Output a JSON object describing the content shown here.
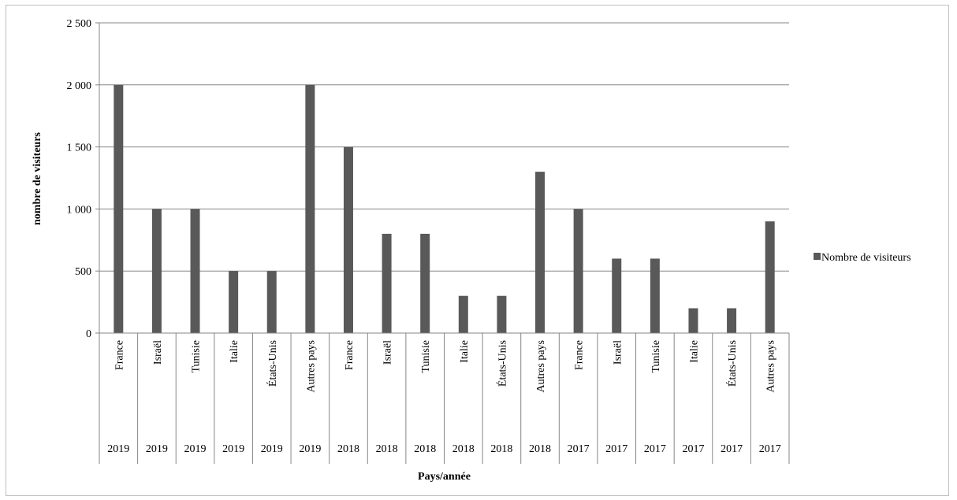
{
  "chart_data": {
    "type": "bar",
    "title": "",
    "xlabel": "Pays/année",
    "ylabel": "nombre de visiteurs",
    "ylim": [
      0,
      2500
    ],
    "yticks": [
      0,
      500,
      1000,
      1500,
      2000,
      2500
    ],
    "ytick_labels": [
      "0",
      "500",
      "1 000",
      "1 500",
      "2 000",
      "2 500"
    ],
    "grid": true,
    "legend_position": "right",
    "bar_color": "#595959",
    "categories": [
      {
        "country": "France",
        "year": "2019"
      },
      {
        "country": "Israël",
        "year": "2019"
      },
      {
        "country": "Tunisie",
        "year": "2019"
      },
      {
        "country": "Italie",
        "year": "2019"
      },
      {
        "country": "États-Unis",
        "year": "2019"
      },
      {
        "country": "Autres pays",
        "year": "2019"
      },
      {
        "country": "France",
        "year": "2018"
      },
      {
        "country": "Israël",
        "year": "2018"
      },
      {
        "country": "Tunisie",
        "year": "2018"
      },
      {
        "country": "Italie",
        "year": "2018"
      },
      {
        "country": "États-Unis",
        "year": "2018"
      },
      {
        "country": "Autres pays",
        "year": "2018"
      },
      {
        "country": "France",
        "year": "2017"
      },
      {
        "country": "Israël",
        "year": "2017"
      },
      {
        "country": "Tunisie",
        "year": "2017"
      },
      {
        "country": "Italie",
        "year": "2017"
      },
      {
        "country": "États-Unis",
        "year": "2017"
      },
      {
        "country": "Autres pays",
        "year": "2017"
      }
    ],
    "series": [
      {
        "name": "Nombre de visiteurs",
        "values": [
          2000,
          1000,
          1000,
          500,
          500,
          2000,
          1500,
          800,
          800,
          300,
          300,
          1300,
          1000,
          600,
          600,
          200,
          200,
          900
        ]
      }
    ]
  }
}
